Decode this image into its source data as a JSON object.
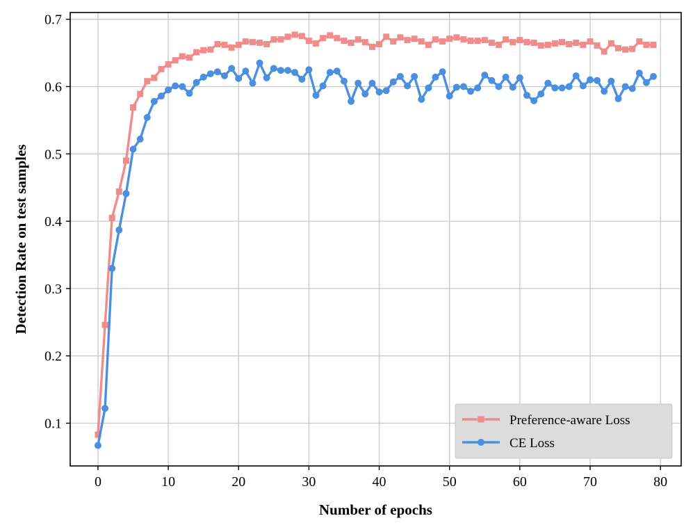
{
  "chart_data": {
    "type": "line",
    "title": "",
    "xlabel": "Number of epochs",
    "ylabel": "Detection Rate on test samples",
    "xlim": [
      -3.95,
      82.95
    ],
    "ylim": [
      0.0365,
      0.71
    ],
    "xticks": [
      0,
      10,
      20,
      30,
      40,
      50,
      60,
      70,
      80
    ],
    "xtick_labels": [
      "0",
      "10",
      "20",
      "30",
      "40",
      "50",
      "60",
      "70",
      "80"
    ],
    "yticks": [
      0.1,
      0.2,
      0.3,
      0.4,
      0.5,
      0.6,
      0.7
    ],
    "ytick_labels": [
      "0.1",
      "0.2",
      "0.3",
      "0.4",
      "0.5",
      "0.6",
      "0.7"
    ],
    "grid": true,
    "legend_position": "lower-right",
    "x": [
      0,
      1,
      2,
      3,
      4,
      5,
      6,
      7,
      8,
      9,
      10,
      11,
      12,
      13,
      14,
      15,
      16,
      17,
      18,
      19,
      20,
      21,
      22,
      23,
      24,
      25,
      26,
      27,
      28,
      29,
      30,
      31,
      32,
      33,
      34,
      35,
      36,
      37,
      38,
      39,
      40,
      41,
      42,
      43,
      44,
      45,
      46,
      47,
      48,
      49,
      50,
      51,
      52,
      53,
      54,
      55,
      56,
      57,
      58,
      59,
      60,
      61,
      62,
      63,
      64,
      65,
      66,
      67,
      68,
      69,
      70,
      71,
      72,
      73,
      74,
      75,
      76,
      77,
      78,
      79
    ],
    "series": [
      {
        "name": "Preference-aware Loss",
        "color": "#f08c8c",
        "marker": "square",
        "values": [
          0.083,
          0.246,
          0.405,
          0.444,
          0.49,
          0.569,
          0.589,
          0.608,
          0.613,
          0.626,
          0.633,
          0.639,
          0.645,
          0.643,
          0.651,
          0.654,
          0.655,
          0.663,
          0.662,
          0.658,
          0.662,
          0.667,
          0.666,
          0.665,
          0.663,
          0.67,
          0.67,
          0.674,
          0.677,
          0.675,
          0.668,
          0.664,
          0.672,
          0.676,
          0.672,
          0.668,
          0.665,
          0.67,
          0.666,
          0.659,
          0.663,
          0.674,
          0.667,
          0.673,
          0.669,
          0.671,
          0.667,
          0.662,
          0.67,
          0.667,
          0.671,
          0.673,
          0.67,
          0.668,
          0.668,
          0.669,
          0.665,
          0.662,
          0.67,
          0.666,
          0.669,
          0.666,
          0.665,
          0.661,
          0.662,
          0.664,
          0.666,
          0.663,
          0.665,
          0.662,
          0.667,
          0.661,
          0.652,
          0.664,
          0.657,
          0.655,
          0.656,
          0.667,
          0.662,
          0.662
        ]
      },
      {
        "name": "CE Loss",
        "color": "#4a8fe0",
        "marker": "circle",
        "values": [
          0.067,
          0.122,
          0.33,
          0.387,
          0.441,
          0.507,
          0.522,
          0.554,
          0.578,
          0.586,
          0.595,
          0.601,
          0.6,
          0.59,
          0.606,
          0.614,
          0.619,
          0.622,
          0.616,
          0.627,
          0.612,
          0.623,
          0.605,
          0.635,
          0.613,
          0.627,
          0.624,
          0.624,
          0.621,
          0.611,
          0.625,
          0.587,
          0.601,
          0.621,
          0.623,
          0.608,
          0.578,
          0.605,
          0.589,
          0.605,
          0.592,
          0.594,
          0.607,
          0.615,
          0.601,
          0.615,
          0.581,
          0.598,
          0.614,
          0.622,
          0.586,
          0.599,
          0.6,
          0.593,
          0.598,
          0.617,
          0.609,
          0.6,
          0.614,
          0.599,
          0.613,
          0.587,
          0.579,
          0.589,
          0.605,
          0.598,
          0.598,
          0.6,
          0.616,
          0.601,
          0.61,
          0.609,
          0.593,
          0.608,
          0.582,
          0.6,
          0.597,
          0.62,
          0.606,
          0.615
        ]
      }
    ]
  }
}
